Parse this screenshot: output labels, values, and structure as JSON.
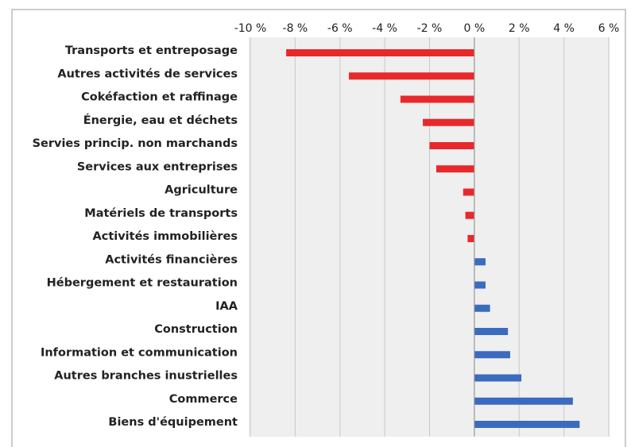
{
  "chart_data": {
    "type": "hbar",
    "categories": [
      "Transports et entreposage",
      "Autres activités de services",
      "Cokéfaction et raffinage",
      "Énergie, eau et déchets",
      "Servies princip. non marchands",
      "Services aux entreprises",
      "Agriculture",
      "Matériels de transports",
      "Activités immobilières",
      "Activités financières",
      "Hébergement et restauration",
      "IAA",
      "Construction",
      "Information et communication",
      "Autres branches inustrielles",
      "Commerce",
      "Biens d'équipement"
    ],
    "values": [
      -8.4,
      -5.6,
      -3.3,
      -2.3,
      -2.0,
      -1.7,
      -0.5,
      -0.4,
      -0.3,
      0.5,
      0.5,
      0.7,
      1.5,
      1.6,
      2.1,
      4.4,
      4.7
    ],
    "negative_color": "#e8282b",
    "positive_color": "#3a6bbf",
    "xlim": [
      -10,
      6
    ],
    "xticks": [
      {
        "value": -10,
        "label": "-10 %"
      },
      {
        "value": -8,
        "label": "-8 %"
      },
      {
        "value": -6,
        "label": "-6 %"
      },
      {
        "value": -4,
        "label": "-4 %"
      },
      {
        "value": -2,
        "label": "-2 %"
      },
      {
        "value": 0,
        "label": "0 %"
      },
      {
        "value": 2,
        "label": "2 %"
      },
      {
        "value": 4,
        "label": "4 %"
      },
      {
        "value": 6,
        "label": "6 %"
      }
    ],
    "grid": true
  }
}
